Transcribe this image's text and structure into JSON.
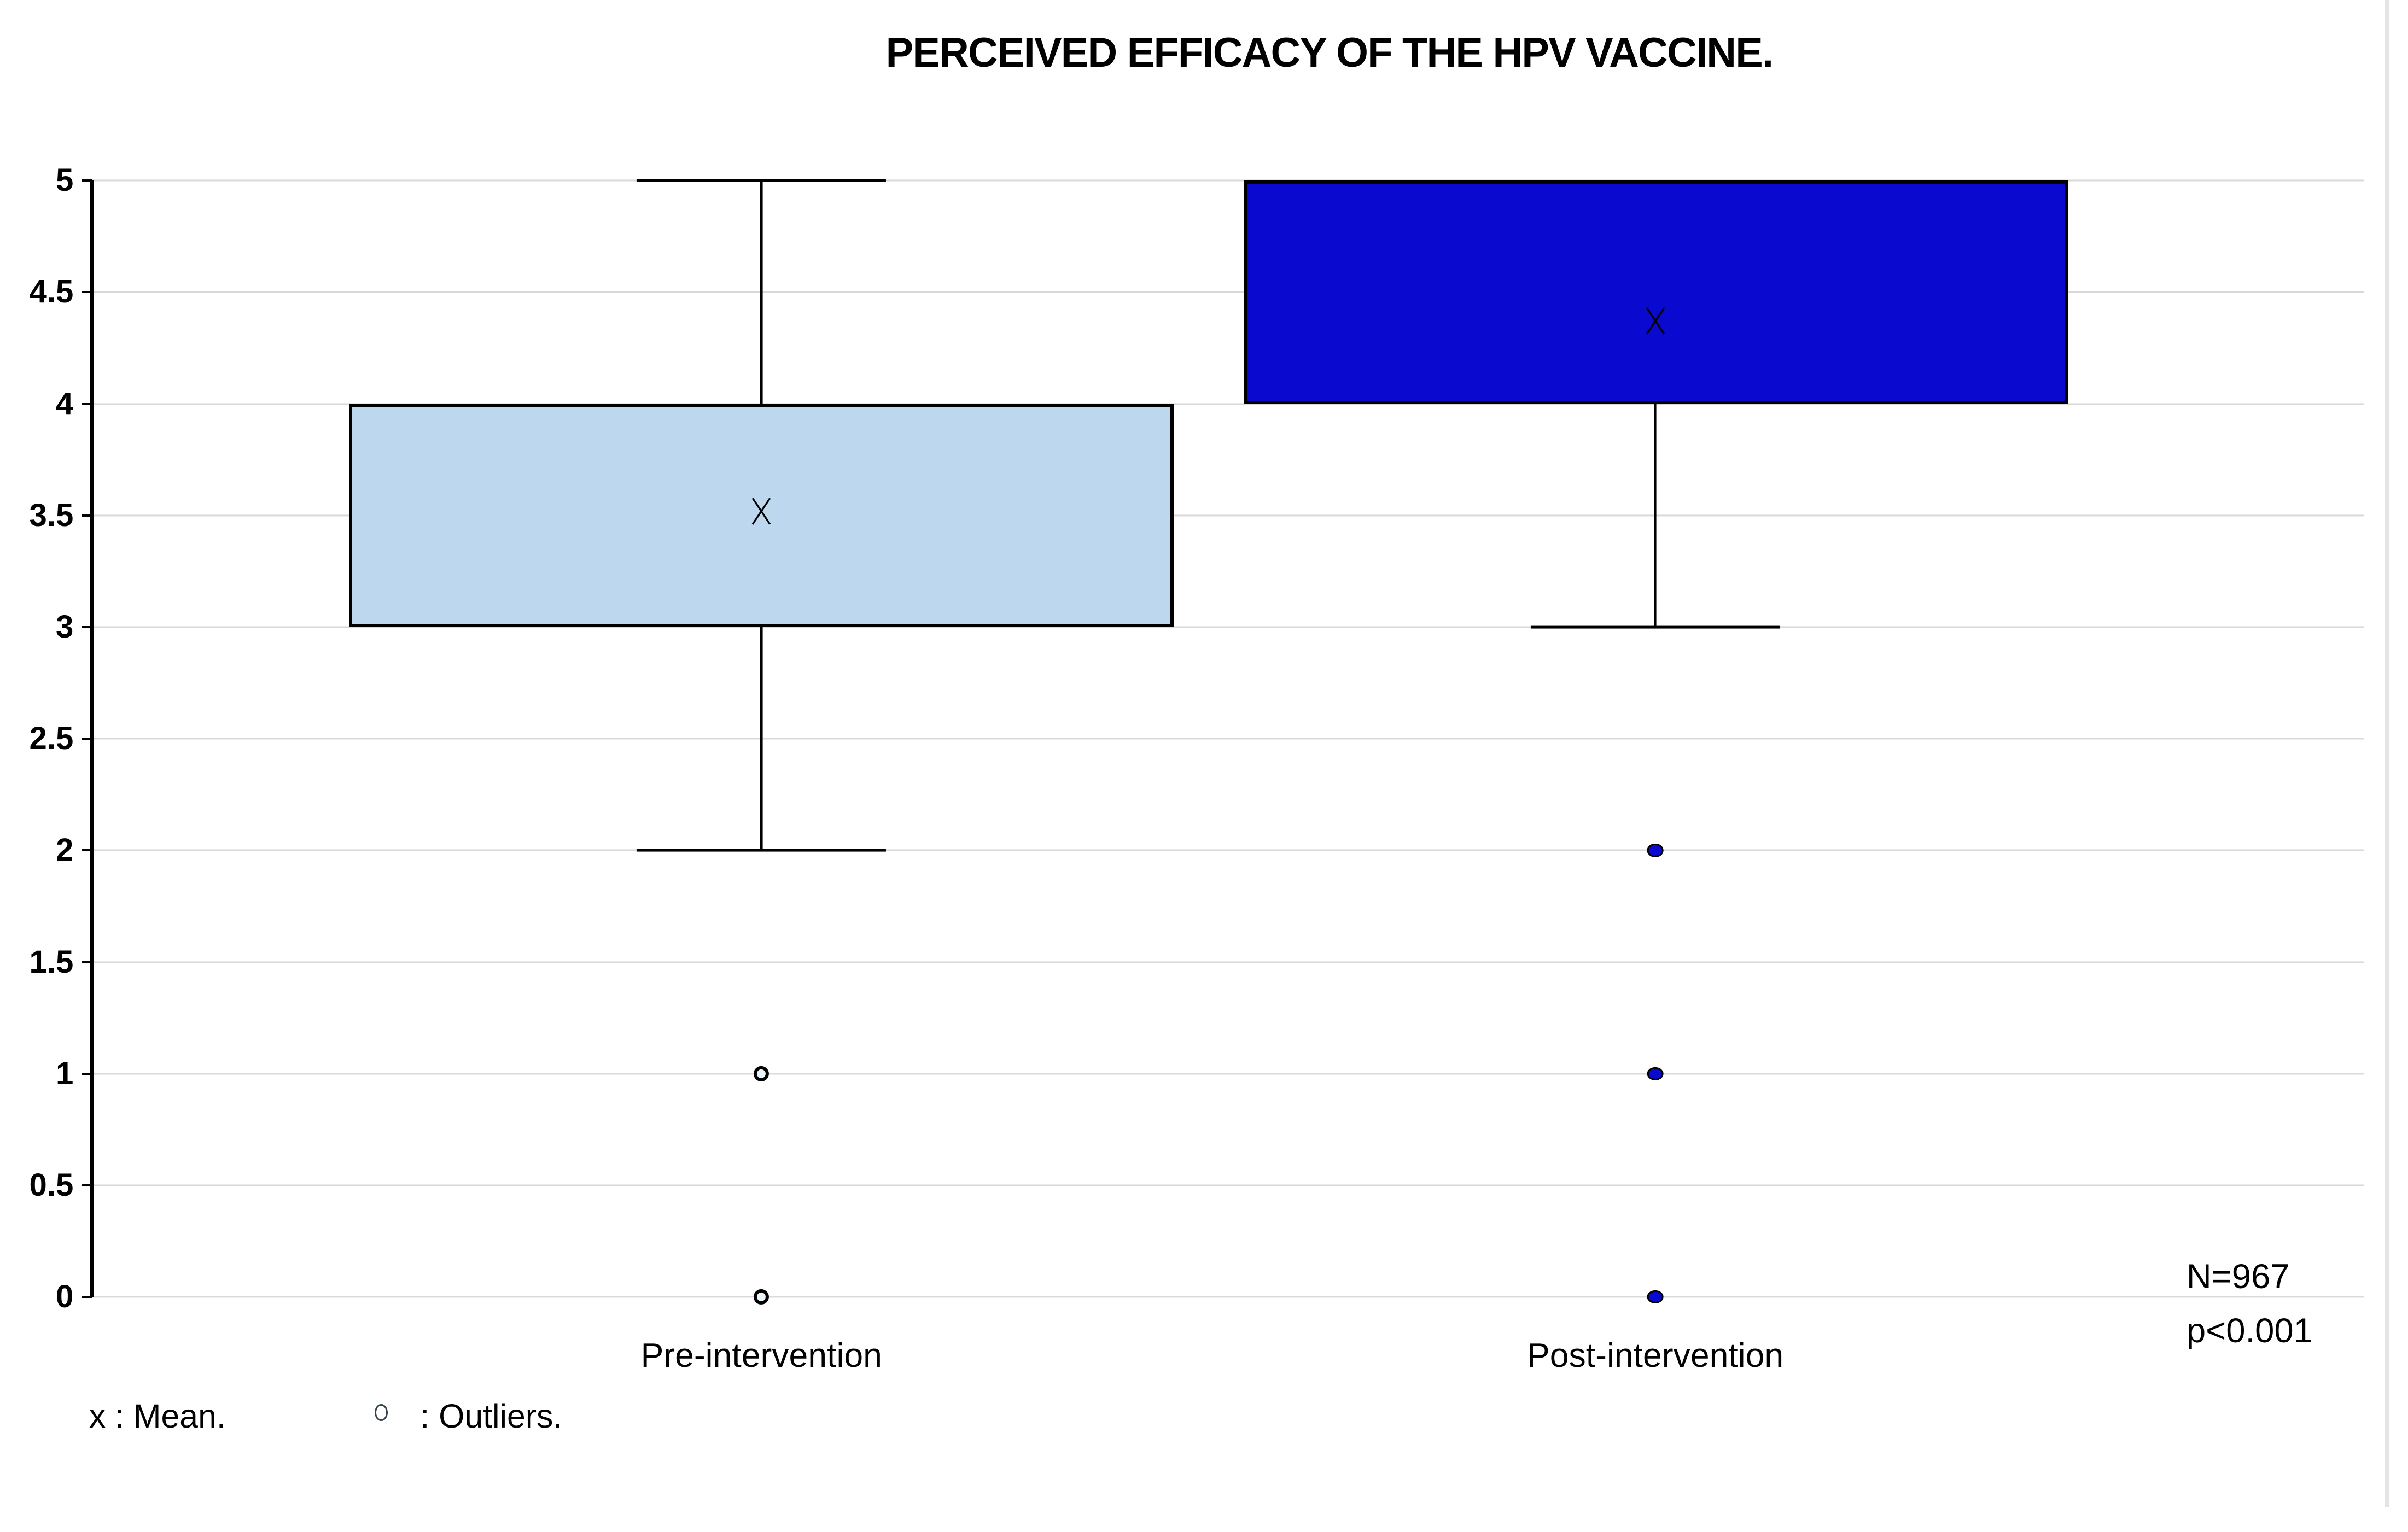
{
  "title": "PERCEIVED EFFICACY OF THE HPV VACCINE.",
  "legend": {
    "mean_label": "x : Mean.",
    "outlier_symbol": "o",
    "outliers_label": ": Outliers."
  },
  "annotation": {
    "sample_size": "N=967",
    "p_value": "p<0.001"
  },
  "colors": {
    "pre_box_fill": "#BDD7EE",
    "post_box_fill": "#0909D0",
    "box_border": "#000000",
    "gridline": "#D9D9D9",
    "axis": "#000000",
    "text": "#000000"
  },
  "chart_data": {
    "type": "boxplot",
    "title": "PERCEIVED EFFICACY OF THE HPV VACCINE.",
    "categories": [
      "Pre-intervention",
      "Post-intervention"
    ],
    "ylim": [
      0,
      5
    ],
    "ytick_step": 0.5,
    "ytick_labels": [
      "5",
      "4.5",
      "4",
      "3.5",
      "3",
      "2.5",
      "2",
      "1.5",
      "1",
      "0.5",
      "0"
    ],
    "grid": true,
    "legend_position": "bottom-left",
    "series": [
      {
        "name": "Pre-intervention",
        "q1": 3,
        "q3": 4,
        "whisker_low": 2,
        "whisker_high": 5,
        "mean": 3.52,
        "median_line_visible": false,
        "outliers": [
          1,
          0
        ],
        "outlier_marker": "open-circle",
        "fill": "#BDD7EE"
      },
      {
        "name": "Post-intervention",
        "q1": 4,
        "q3": 5,
        "whisker_low": 3,
        "whisker_high": 5,
        "mean": 4.37,
        "median_line_visible": false,
        "outliers": [
          2,
          1,
          0
        ],
        "outlier_marker": "filled-circle",
        "fill": "#0909D0"
      }
    ],
    "annotations": [
      "N=967",
      "p<0.001"
    ]
  }
}
